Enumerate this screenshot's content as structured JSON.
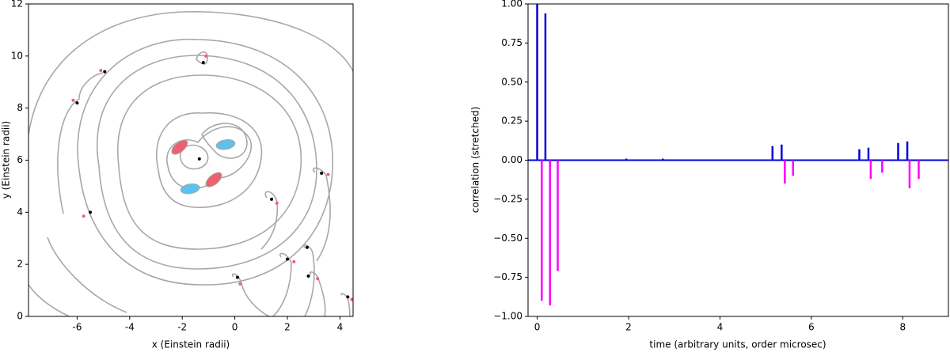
{
  "chart_data": [
    {
      "type": "scatter",
      "xlabel": "x (Einstein radii)",
      "ylabel": "y (Einstein radii)",
      "xlim": [
        -7.85,
        4.5
      ],
      "ylim": [
        0,
        12
      ],
      "xticks": [
        -6,
        -4,
        -2,
        0,
        2,
        4
      ],
      "yticks": [
        0,
        2,
        4,
        6,
        8,
        10,
        12
      ],
      "series": [
        {
          "color": "#f06070",
          "marker": "dot",
          "x": [
            -1.1,
            -5.1,
            -6.15,
            -5.75,
            3.55,
            1.6,
            2.25,
            0.2,
            3.15,
            4.45
          ],
          "values": [
            10.0,
            9.45,
            8.3,
            3.85,
            5.45,
            4.35,
            2.1,
            1.25,
            1.45,
            0.65
          ]
        },
        {
          "color": "#000000",
          "marker": "dot",
          "x": [
            -1.2,
            -4.95,
            -6.0,
            -5.5,
            3.3,
            1.4,
            2.0,
            0.1,
            2.8,
            2.75,
            4.3,
            -1.35
          ],
          "values": [
            9.75,
            9.4,
            8.2,
            4.0,
            5.5,
            4.5,
            2.2,
            1.5,
            1.55,
            2.65,
            0.75,
            6.05
          ]
        },
        {
          "color": "#ee5f70",
          "marker": "ellipse",
          "x": [
            -2.1,
            -0.8
          ],
          "values": [
            6.5,
            5.25
          ]
        },
        {
          "color": "#5ec0ec",
          "marker": "ellipse",
          "x": [
            -0.35,
            -1.7
          ],
          "values": [
            6.6,
            4.9
          ]
        }
      ]
    },
    {
      "type": "spikes",
      "xlabel": "time (arbitrary units, order microsec)",
      "ylabel": "correlation (stretched)",
      "xlim": [
        -0.2,
        9
      ],
      "ylim": [
        -1,
        1
      ],
      "xticks": [
        0,
        2,
        4,
        6,
        8
      ],
      "yticks": [
        {
          "value": -1,
          "label": "−1.00"
        },
        {
          "value": -0.75,
          "label": "−0.75"
        },
        {
          "value": -0.5,
          "label": "−0.50"
        },
        {
          "value": -0.25,
          "label": "−0.25"
        },
        {
          "value": 0,
          "label": "0.00"
        },
        {
          "value": 0.25,
          "label": "0.25"
        },
        {
          "value": 0.5,
          "label": "0.50"
        },
        {
          "value": 0.75,
          "label": "0.75"
        },
        {
          "value": 1,
          "label": "1.00"
        }
      ],
      "series": [
        {
          "color": "#ff00ff",
          "x": [
            0.1,
            0.28,
            0.45,
            5.42,
            5.6,
            7.3,
            7.55,
            8.15,
            8.35
          ],
          "values": [
            -0.9,
            -0.93,
            -0.71,
            -0.15,
            -0.1,
            -0.12,
            -0.08,
            -0.18,
            -0.12
          ]
        },
        {
          "color": "#0000dd",
          "x": [
            0,
            0.18,
            1.95,
            2.75,
            5.15,
            5.35,
            7.05,
            7.25,
            7.9,
            8.1
          ],
          "values": [
            1.0,
            0.94,
            0.01,
            0.01,
            0.09,
            0.1,
            0.07,
            0.08,
            0.11,
            0.12
          ]
        }
      ]
    }
  ]
}
